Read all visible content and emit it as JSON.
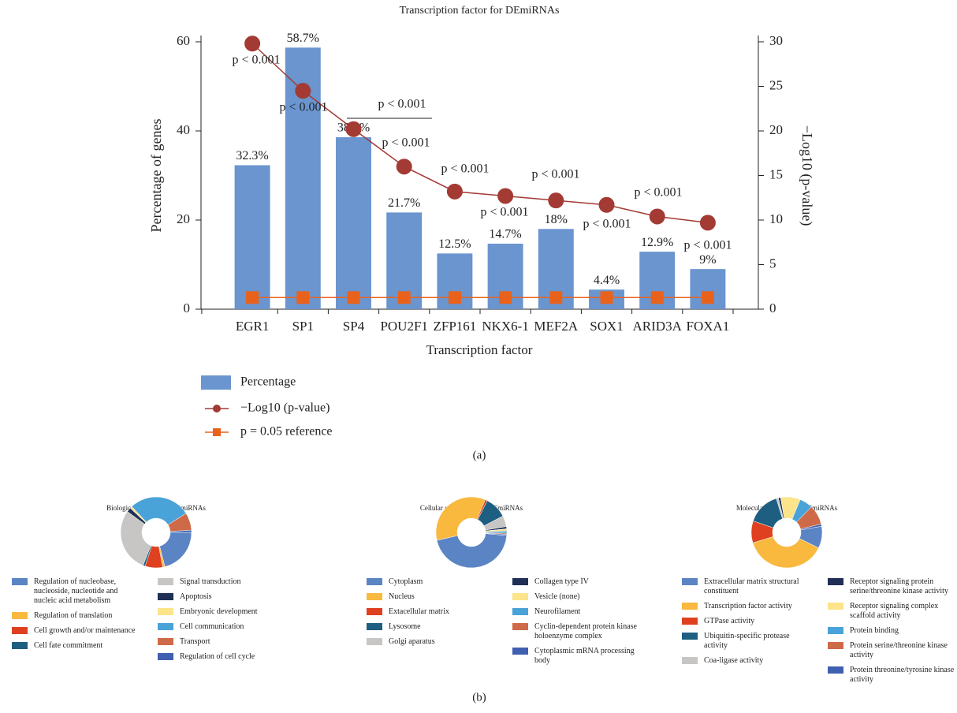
{
  "panel_labels": [
    "(a)",
    "(b)"
  ],
  "chart_data": [
    {
      "type": "bar",
      "title": "Transcription factor for DEmiRNAs",
      "x_label": "Transcription factor",
      "y_label": "Percentage of genes",
      "y2_label": "−Log10 (p-value)",
      "categories": [
        "EGR1",
        "SP1",
        "SP4",
        "POU2F1",
        "ZFP161",
        "NKX6-1",
        "MEF2A",
        "SOX1",
        "ARID3A",
        "FOXA1"
      ],
      "series": [
        {
          "name": "Percentage",
          "color": "#6a95cf",
          "values": [
            32.3,
            58.7,
            38.6,
            21.7,
            12.5,
            14.7,
            18,
            4.4,
            12.9,
            9
          ],
          "value_labels": [
            "32.3%",
            "58.7%",
            "38.6%",
            "21.7%",
            "12.5%",
            "14.7%",
            "18%",
            "4.4%",
            "12.9%",
            "9%"
          ]
        },
        {
          "name": "−Log10 (p-value)",
          "color": "#a33a34",
          "axis": "y2",
          "values": [
            29.8,
            24.5,
            20.2,
            16,
            13.2,
            12.7,
            12.2,
            11.7,
            10.4,
            9.7
          ]
        },
        {
          "name": "p = 0.05 reference",
          "color": "#e8621c",
          "axis": "y2",
          "values": [
            1.3,
            1.3,
            1.3,
            1.3,
            1.3,
            1.3,
            1.3,
            1.3,
            1.3,
            1.3
          ]
        }
      ],
      "annotations": [
        "p < 0.001",
        "p < 0.001",
        "p < 0.001",
        "p < 0.001",
        "p < 0.001",
        "p < 0.001",
        "p < 0.001",
        "p < 0.001",
        "p < 0.001",
        "p < 0.001"
      ],
      "ylim": [
        0,
        60
      ],
      "yticks": [
        0,
        20,
        40,
        60
      ],
      "y2lim": [
        0,
        30
      ],
      "y2ticks": [
        0,
        5,
        10,
        15,
        20,
        25,
        30
      ]
    },
    {
      "type": "pie",
      "title": "Biological process for DEmiRNAs",
      "categories": [
        "Regulation of nucleobase, nucleoside, nucleotide and nucleic acid metabolism",
        "Regulation of translation",
        "Cell growth and/or maintenance",
        "Cell fate commitment",
        "Signal transduction",
        "Apoptosis",
        "Embryonic development",
        "Cell communication",
        "Transport",
        "Regulation of cell cycle"
      ],
      "values": [
        21,
        1,
        8,
        1,
        29,
        2,
        1,
        28,
        8,
        1
      ],
      "colors": [
        "#5b84c4",
        "#f8b93e",
        "#de4020",
        "#1e5e80",
        "#c8c5c5",
        "#1f2f55",
        "#fbe48a",
        "#4aa3d8",
        "#cf6a48",
        "#3f5fb0"
      ]
    },
    {
      "type": "pie",
      "title": "Cellular component for DEmiRNAs",
      "categories": [
        "Cytoplasm",
        "Nucleus",
        "Extacellular matrix",
        "Lysosome",
        "Golgi aparatus",
        "Collagen type IV",
        "Vesicle (none)",
        "Neurofilament",
        "Cyclin-dependent protein kinase holoenzyme complex",
        "Cytoplasmic mRNA processing body"
      ],
      "values": [
        45,
        35,
        1,
        10,
        5,
        1,
        1,
        1,
        0.5,
        0.5
      ],
      "colors": [
        "#5b84c4",
        "#f8b93e",
        "#de4020",
        "#1e5e80",
        "#c8c5c5",
        "#1f2f55",
        "#fbe48a",
        "#4aa3d8",
        "#cf6a48",
        "#3f5fb0"
      ]
    },
    {
      "type": "pie",
      "title": "Molecular function for DEmiRNAs",
      "categories": [
        "Extracellular matrix structural constituent",
        "Transcription factor activity",
        "GTPase activity",
        "Ubiquitin-specific protease activity",
        "Coa-ligase activity",
        "Receptor signaling protein serine/threonine kinase activity",
        "Receptor signaling complex scaffold activity",
        "Protein binding",
        "Protein serine/threonine kinase activity",
        "Protein threonine/tyrosine kinase activity"
      ],
      "values": [
        10,
        38,
        10,
        15,
        1,
        1,
        9,
        6,
        9,
        1
      ],
      "colors": [
        "#5b84c4",
        "#f8b93e",
        "#de4020",
        "#1e5e80",
        "#c8c5c5",
        "#1f2f55",
        "#fbe48a",
        "#4aa3d8",
        "#cf6a48",
        "#3f5fb0"
      ]
    }
  ]
}
